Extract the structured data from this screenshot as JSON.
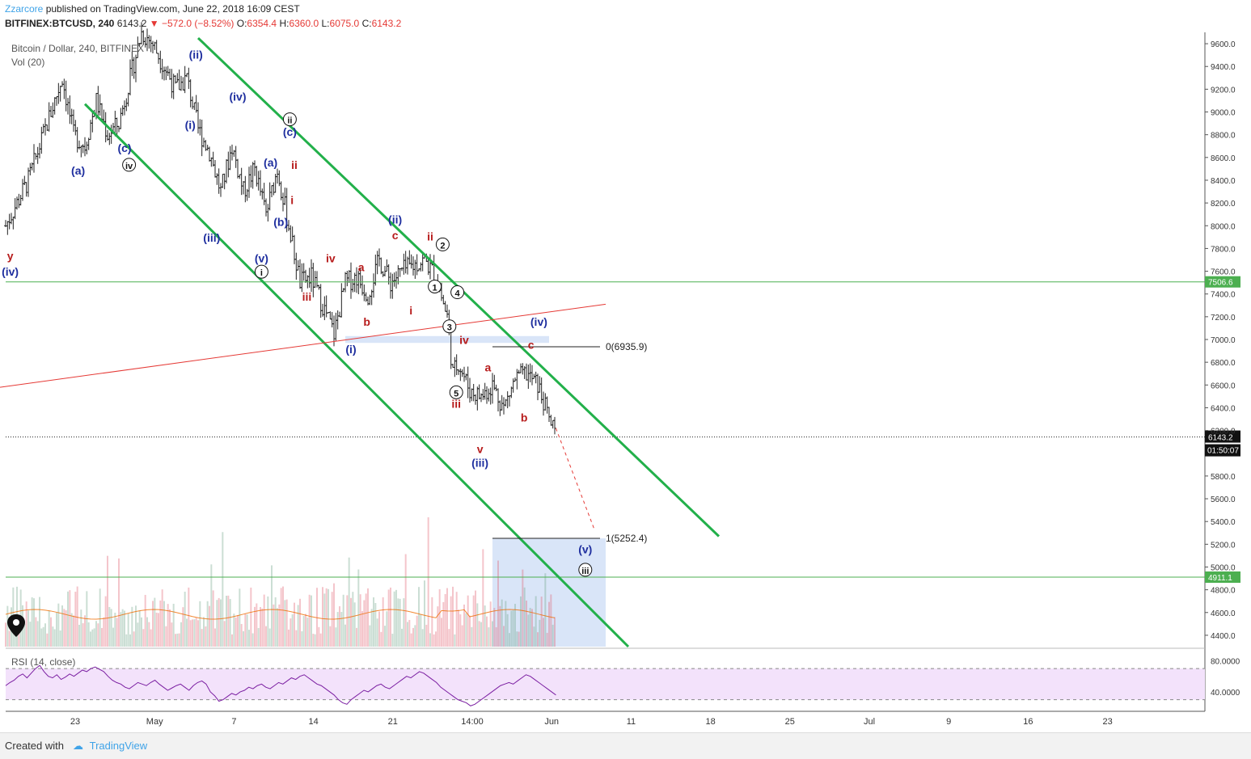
{
  "header": {
    "author": "Zzarcore",
    "published": "published on TradingView.com, June 22, 2018 16:09 CEST",
    "symbol": "BITFINEX:BTCUSD, 240",
    "last": "6143.2",
    "change": "−572.0 (−8.52%)",
    "o_label": "O:",
    "o_value": "6354.4",
    "h_label": "H:",
    "h_value": "6360.0",
    "l_label": "L:",
    "l_value": "6075.0",
    "c_label": "C:",
    "c_value": "6143.2",
    "pane_title": "Bitcoin / Dollar, 240, BITFINEX",
    "vol_label": "Vol (20)",
    "rsi_label": "RSI (14, close)"
  },
  "footer": {
    "created_with": "Created with",
    "logo_text": "TradingView"
  },
  "colors": {
    "bull": "#6aa084",
    "bear": "#e05a6a",
    "channel": "#22b04a",
    "resistance_red": "#e53935",
    "hline": "#4caf50",
    "wave_blue": "#1f2f9f",
    "wave_red": "#b71c1c",
    "rsi_band": "#f3e2fb",
    "rsi_line": "#7b1fa2",
    "target_box": "#c9daf5"
  },
  "chart_data": {
    "type": "candlestick",
    "symbol": "BTCUSD",
    "interval": "240",
    "ylim": [
      4300,
      9700
    ],
    "y_ticks": [
      "9600.0",
      "9400.0",
      "9200.0",
      "9000.0",
      "8800.0",
      "8600.0",
      "8400.0",
      "8200.0",
      "8000.0",
      "7800.0",
      "7600.0",
      "7400.0",
      "7200.0",
      "7000.0",
      "6800.0",
      "6600.0",
      "6400.0",
      "6200.0",
      "5800.0",
      "5600.0",
      "5400.0",
      "5200.0",
      "5000.0",
      "4800.0",
      "4600.0",
      "4400.0"
    ],
    "x_ticks": [
      "23",
      "May",
      "7",
      "14",
      "21",
      "14:00",
      "Jun",
      "11",
      "18",
      "25",
      "Jul",
      "9",
      "16",
      "23"
    ],
    "price_path": [
      {
        "d": 0,
        "p": 8000
      },
      {
        "d": 2,
        "p": 8400
      },
      {
        "d": 4,
        "p": 9000
      },
      {
        "d": 5,
        "p": 9300
      },
      {
        "d": 6,
        "p": 8800
      },
      {
        "d": 7,
        "p": 8700
      },
      {
        "d": 8,
        "p": 9100
      },
      {
        "d": 9,
        "p": 8800
      },
      {
        "d": 10,
        "p": 8900
      },
      {
        "d": 11,
        "p": 9300
      },
      {
        "d": 12,
        "p": 9700
      },
      {
        "d": 13,
        "p": 9600
      },
      {
        "d": 14,
        "p": 9400
      },
      {
        "d": 15,
        "p": 9200
      },
      {
        "d": 16,
        "p": 9300
      },
      {
        "d": 17,
        "p": 8850
      },
      {
        "d": 18,
        "p": 8650
      },
      {
        "d": 19,
        "p": 8300
      },
      {
        "d": 20,
        "p": 8700
      },
      {
        "d": 21,
        "p": 8300
      },
      {
        "d": 22,
        "p": 8500
      },
      {
        "d": 23,
        "p": 8100
      },
      {
        "d": 24,
        "p": 8500
      },
      {
        "d": 25,
        "p": 8000
      },
      {
        "d": 26,
        "p": 7500
      },
      {
        "d": 27,
        "p": 7550
      },
      {
        "d": 28,
        "p": 7300
      },
      {
        "d": 29,
        "p": 7050
      },
      {
        "d": 30,
        "p": 7500
      },
      {
        "d": 31,
        "p": 7550
      },
      {
        "d": 32,
        "p": 7400
      },
      {
        "d": 33,
        "p": 7700
      },
      {
        "d": 34,
        "p": 7500
      },
      {
        "d": 35,
        "p": 7600
      },
      {
        "d": 36,
        "p": 7650
      },
      {
        "d": 37,
        "p": 7700
      },
      {
        "d": 38,
        "p": 7550
      },
      {
        "d": 39,
        "p": 7200
      },
      {
        "d": 39.5,
        "p": 6700
      },
      {
        "d": 40,
        "p": 6800
      },
      {
        "d": 41,
        "p": 6550
      },
      {
        "d": 42,
        "p": 6500
      },
      {
        "d": 43,
        "p": 6600
      },
      {
        "d": 44,
        "p": 6400
      },
      {
        "d": 45,
        "p": 6650
      },
      {
        "d": 46,
        "p": 6700
      },
      {
        "d": 47,
        "p": 6600
      },
      {
        "d": 48,
        "p": 6300
      },
      {
        "d": 48.6,
        "p": 6143
      }
    ],
    "last_price": "6143.2",
    "countdown": "01:50:07",
    "levels": [
      {
        "label": "7506.6",
        "price": 7506.6
      },
      {
        "label": "4911.1",
        "price": 4911.1
      }
    ],
    "fib": [
      {
        "label": "0(6935.9)",
        "price": 6935.9
      },
      {
        "label": "1(5252.4)",
        "price": 5252.4
      }
    ],
    "channel_upper": [
      {
        "d": 17,
        "p": 9650
      },
      {
        "d": 63,
        "p": 5270
      }
    ],
    "channel_lower": [
      {
        "d": 7,
        "p": 9070
      },
      {
        "d": 55,
        "p": 4300
      }
    ],
    "red_line": [
      {
        "d": -0.5,
        "p": 6580
      },
      {
        "d": 53,
        "p": 7310
      }
    ],
    "projection": [
      {
        "d": 48.6,
        "p": 6220
      },
      {
        "d": 52,
        "p": 5330
      }
    ],
    "target_box": {
      "d0": 43,
      "d1": 53,
      "p0": 4300,
      "p1": 5252.4
    },
    "rsi": {
      "levels": [
        "80.0000",
        "40.0000"
      ],
      "ylim": [
        15,
        95
      ],
      "band": [
        70,
        30
      ],
      "values": [
        48,
        52,
        55,
        60,
        63,
        58,
        64,
        70,
        74,
        66,
        60,
        58,
        62,
        56,
        59,
        63,
        60,
        64,
        68,
        66,
        70,
        72,
        69,
        66,
        60,
        55,
        52,
        50,
        46,
        44,
        48,
        52,
        50,
        48,
        52,
        55,
        50,
        46,
        42,
        45,
        48,
        50,
        46,
        42,
        48,
        52,
        54,
        50,
        40,
        35,
        28,
        30,
        34,
        38,
        36,
        40,
        42,
        46,
        44,
        48,
        50,
        46,
        44,
        48,
        52,
        50,
        54,
        58,
        56,
        60,
        62,
        58,
        54,
        50,
        48,
        44,
        40,
        36,
        30,
        26,
        24,
        30,
        34,
        38,
        42,
        40,
        44,
        48,
        50,
        46,
        44,
        48,
        52,
        56,
        60,
        58,
        62,
        66,
        64,
        60,
        56,
        52,
        46,
        42,
        38,
        34,
        30,
        28,
        26,
        22,
        24,
        28,
        32,
        36,
        40,
        44,
        48,
        50,
        52,
        50,
        54,
        58,
        62,
        60,
        56,
        52,
        48,
        44,
        40,
        36
      ]
    },
    "wave_labels": [
      {
        "t": "y",
        "d": 0.4,
        "p": 7700,
        "c": "red",
        "circ": false
      },
      {
        "t": "(iv)",
        "d": 0.4,
        "p": 7560,
        "c": "blue",
        "circ": false
      },
      {
        "t": "(a)",
        "d": 6.4,
        "p": 8450,
        "c": "blue",
        "circ": false
      },
      {
        "t": "(c)",
        "d": 10.5,
        "p": 8650,
        "c": "blue",
        "circ": false
      },
      {
        "t": "iv",
        "d": 10.9,
        "p": 8500,
        "c": "black",
        "circ": true
      },
      {
        "t": "(ii)",
        "d": 16.8,
        "p": 9470,
        "c": "blue",
        "circ": false
      },
      {
        "t": "(i)",
        "d": 16.3,
        "p": 8850,
        "c": "blue",
        "circ": false
      },
      {
        "t": "(iv)",
        "d": 20.5,
        "p": 9100,
        "c": "blue",
        "circ": false
      },
      {
        "t": "(iii)",
        "d": 18.2,
        "p": 7860,
        "c": "blue",
        "circ": false
      },
      {
        "t": "(a)",
        "d": 23.4,
        "p": 8520,
        "c": "blue",
        "circ": false
      },
      {
        "t": "(b)",
        "d": 24.3,
        "p": 8000,
        "c": "blue",
        "circ": false
      },
      {
        "t": "(v)",
        "d": 22.6,
        "p": 7680,
        "c": "blue",
        "circ": false
      },
      {
        "t": "i",
        "d": 22.6,
        "p": 7560,
        "c": "black",
        "circ": true
      },
      {
        "t": "ii",
        "d": 25.1,
        "p": 8900,
        "c": "black",
        "circ": true
      },
      {
        "t": "(c)",
        "d": 25.1,
        "p": 8790,
        "c": "blue",
        "circ": false
      },
      {
        "t": "ii",
        "d": 25.5,
        "p": 8500,
        "c": "red",
        "circ": false
      },
      {
        "t": "i",
        "d": 25.3,
        "p": 8190,
        "c": "red",
        "circ": false
      },
      {
        "t": "iii",
        "d": 26.6,
        "p": 7340,
        "c": "red",
        "circ": false
      },
      {
        "t": "iv",
        "d": 28.7,
        "p": 7680,
        "c": "red",
        "circ": false
      },
      {
        "t": "(i)",
        "d": 30.5,
        "p": 6880,
        "c": "blue",
        "circ": false
      },
      {
        "t": "b",
        "d": 31.9,
        "p": 7120,
        "c": "red",
        "circ": false
      },
      {
        "t": "a",
        "d": 31.4,
        "p": 7600,
        "c": "red",
        "circ": false
      },
      {
        "t": "c",
        "d": 34.4,
        "p": 7880,
        "c": "red",
        "circ": false
      },
      {
        "t": "(ii)",
        "d": 34.4,
        "p": 8020,
        "c": "blue",
        "circ": false
      },
      {
        "t": "i",
        "d": 35.8,
        "p": 7220,
        "c": "red",
        "circ": false
      },
      {
        "t": "ii",
        "d": 37.5,
        "p": 7870,
        "c": "red",
        "circ": false
      },
      {
        "t": "2",
        "d": 38.6,
        "p": 7800,
        "c": "black",
        "circ": true
      },
      {
        "t": "1",
        "d": 37.9,
        "p": 7430,
        "c": "black",
        "circ": true
      },
      {
        "t": "4",
        "d": 39.9,
        "p": 7380,
        "c": "black",
        "circ": true
      },
      {
        "t": "3",
        "d": 39.2,
        "p": 7080,
        "c": "black",
        "circ": true
      },
      {
        "t": "iv",
        "d": 40.5,
        "p": 6960,
        "c": "red",
        "circ": false
      },
      {
        "t": "5",
        "d": 39.8,
        "p": 6500,
        "c": "black",
        "circ": true
      },
      {
        "t": "iii",
        "d": 39.8,
        "p": 6400,
        "c": "red",
        "circ": false
      },
      {
        "t": "a",
        "d": 42.6,
        "p": 6720,
        "c": "red",
        "circ": false
      },
      {
        "t": "b",
        "d": 45.8,
        "p": 6280,
        "c": "red",
        "circ": false
      },
      {
        "t": "c",
        "d": 46.4,
        "p": 6920,
        "c": "red",
        "circ": false
      },
      {
        "t": "(iv)",
        "d": 47.1,
        "p": 7120,
        "c": "blue",
        "circ": false
      },
      {
        "t": "v",
        "d": 41.9,
        "p": 6000,
        "c": "red",
        "circ": false
      },
      {
        "t": "(iii)",
        "d": 41.9,
        "p": 5880,
        "c": "blue",
        "circ": false
      },
      {
        "t": "(v)",
        "d": 51.2,
        "p": 5120,
        "c": "blue",
        "circ": false
      },
      {
        "t": "iii",
        "d": 51.2,
        "p": 4940,
        "c": "black",
        "circ": true
      }
    ]
  }
}
